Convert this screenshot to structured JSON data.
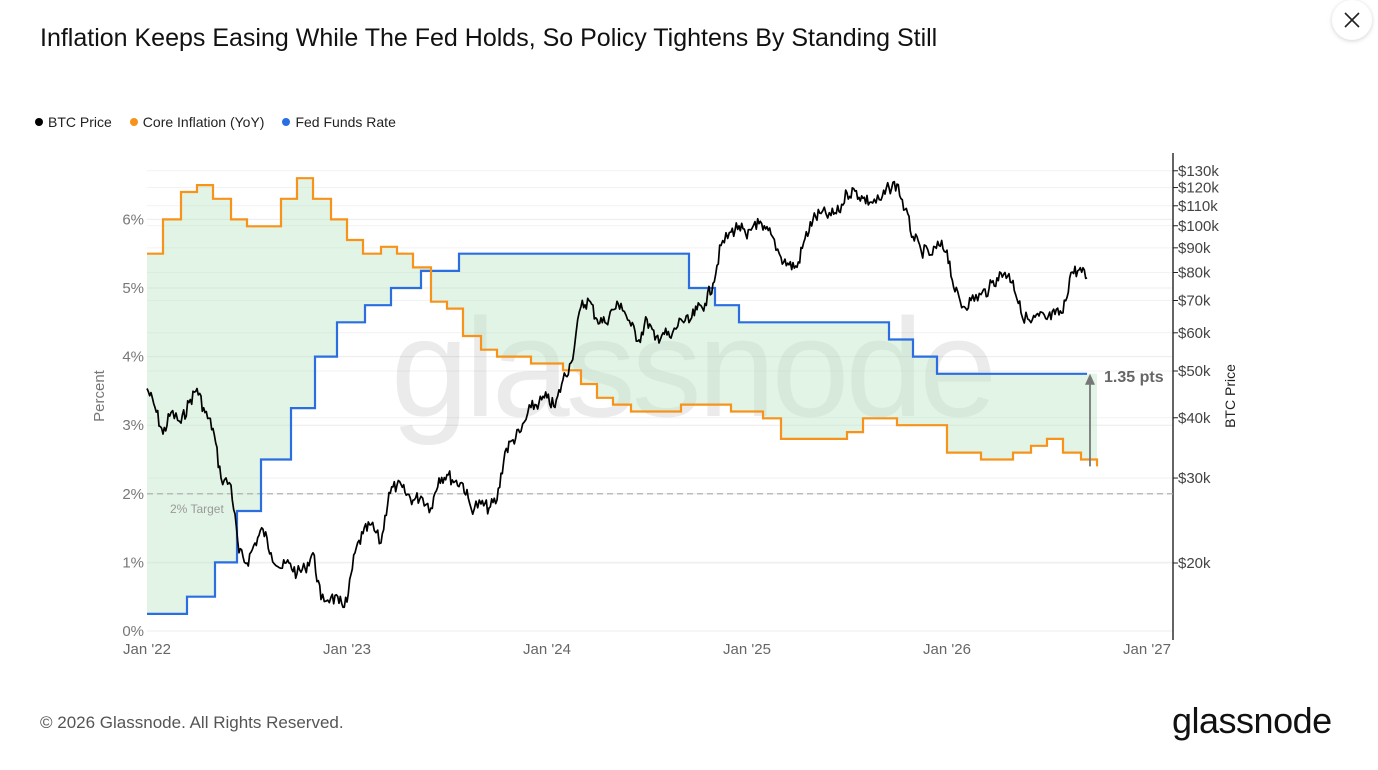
{
  "title": "Inflation Keeps Easing While The Fed Holds, So Policy Tightens By Standing Still",
  "legend": [
    {
      "label": "BTC Price",
      "color": "#000000"
    },
    {
      "label": "Core Inflation (YoY)",
      "color": "#f7931a"
    },
    {
      "label": "Fed Funds Rate",
      "color": "#2a6ee0"
    }
  ],
  "footer": "© 2026 Glassnode. All Rights Reserved.",
  "logo": "glassnode",
  "watermark": "glassnode",
  "close_icon": "close-icon",
  "chart_data": {
    "type": "line",
    "xlabel": "",
    "ylabel_left": "Percent",
    "ylabel_right": "BTC Price",
    "x_ticks": [
      "Jan '22",
      "Jan '23",
      "Jan '24",
      "Jan '25",
      "Jan '26",
      "Jan '27"
    ],
    "x_range": [
      2022.0,
      2027.13
    ],
    "y_left_ticks": [
      "0%",
      "1%",
      "2%",
      "3%",
      "4%",
      "5%",
      "6%"
    ],
    "y_left_range": [
      0,
      6.9
    ],
    "y_right_scale": "log",
    "y_right_ticks": [
      {
        "label": "$20k",
        "value": 20000
      },
      {
        "label": "$30k",
        "value": 30000
      },
      {
        "label": "$40k",
        "value": 40000
      },
      {
        "label": "$50k",
        "value": 50000
      },
      {
        "label": "$60k",
        "value": 60000
      },
      {
        "label": "$70k",
        "value": 70000
      },
      {
        "label": "$80k",
        "value": 80000
      },
      {
        "label": "$90k",
        "value": 90000
      },
      {
        "label": "$100k",
        "value": 100000
      },
      {
        "label": "$110k",
        "value": 110000
      },
      {
        "label": "$120k",
        "value": 120000
      },
      {
        "label": "$130k",
        "value": 130000
      }
    ],
    "annotations": {
      "target_label": "2% Target",
      "target_value": 2,
      "gap_label": "1.35 pts",
      "gap_from": 2.4,
      "gap_to": 3.75
    },
    "core_inflation": {
      "name": "Core Inflation (YoY)",
      "color": "#f7931a",
      "points": [
        [
          2022.0,
          5.5
        ],
        [
          2022.08,
          6.0
        ],
        [
          2022.17,
          6.4
        ],
        [
          2022.25,
          6.5
        ],
        [
          2022.33,
          6.3
        ],
        [
          2022.42,
          6.0
        ],
        [
          2022.5,
          5.9
        ],
        [
          2022.58,
          5.9
        ],
        [
          2022.67,
          6.3
        ],
        [
          2022.75,
          6.6
        ],
        [
          2022.83,
          6.3
        ],
        [
          2022.92,
          6.0
        ],
        [
          2023.0,
          5.7
        ],
        [
          2023.08,
          5.5
        ],
        [
          2023.17,
          5.6
        ],
        [
          2023.25,
          5.5
        ],
        [
          2023.33,
          5.3
        ],
        [
          2023.42,
          4.8
        ],
        [
          2023.5,
          4.7
        ],
        [
          2023.58,
          4.3
        ],
        [
          2023.67,
          4.1
        ],
        [
          2023.75,
          4.0
        ],
        [
          2023.83,
          4.0
        ],
        [
          2023.92,
          3.9
        ],
        [
          2024.0,
          3.9
        ],
        [
          2024.08,
          3.8
        ],
        [
          2024.17,
          3.6
        ],
        [
          2024.25,
          3.4
        ],
        [
          2024.33,
          3.3
        ],
        [
          2024.42,
          3.2
        ],
        [
          2024.5,
          3.2
        ],
        [
          2024.58,
          3.2
        ],
        [
          2024.67,
          3.3
        ],
        [
          2024.75,
          3.3
        ],
        [
          2024.83,
          3.3
        ],
        [
          2024.92,
          3.2
        ],
        [
          2025.0,
          3.2
        ],
        [
          2025.08,
          3.1
        ],
        [
          2025.17,
          2.8
        ],
        [
          2025.25,
          2.8
        ],
        [
          2025.33,
          2.8
        ],
        [
          2025.42,
          2.8
        ],
        [
          2025.5,
          2.9
        ],
        [
          2025.58,
          3.1
        ],
        [
          2025.67,
          3.1
        ],
        [
          2025.75,
          3.0
        ],
        [
          2025.83,
          3.0
        ],
        [
          2025.92,
          3.0
        ],
        [
          2026.0,
          2.6
        ],
        [
          2026.08,
          2.6
        ],
        [
          2026.17,
          2.5
        ],
        [
          2026.25,
          2.5
        ],
        [
          2026.33,
          2.6
        ],
        [
          2026.42,
          2.7
        ],
        [
          2026.5,
          2.8
        ],
        [
          2026.58,
          2.6
        ],
        [
          2026.67,
          2.5
        ],
        [
          2026.75,
          2.4
        ]
      ]
    },
    "fed_funds_rate": {
      "name": "Fed Funds Rate",
      "color": "#2a6ee0",
      "points": [
        [
          2022.0,
          0.25
        ],
        [
          2022.2,
          0.5
        ],
        [
          2022.34,
          1.0
        ],
        [
          2022.45,
          1.75
        ],
        [
          2022.57,
          2.5
        ],
        [
          2022.72,
          3.25
        ],
        [
          2022.84,
          4.0
        ],
        [
          2022.95,
          4.5
        ],
        [
          2023.09,
          4.75
        ],
        [
          2023.22,
          5.0
        ],
        [
          2023.37,
          5.25
        ],
        [
          2023.56,
          5.5
        ],
        [
          2024.71,
          5.0
        ],
        [
          2024.84,
          4.75
        ],
        [
          2024.96,
          4.5
        ],
        [
          2025.71,
          4.25
        ],
        [
          2025.83,
          4.0
        ],
        [
          2025.95,
          3.75
        ],
        [
          2026.7,
          3.75
        ]
      ]
    },
    "btc_price": {
      "name": "BTC Price",
      "color": "#000000",
      "points": [
        [
          2022.0,
          46000
        ],
        [
          2022.04,
          42000
        ],
        [
          2022.08,
          37000
        ],
        [
          2022.12,
          41000
        ],
        [
          2022.17,
          39000
        ],
        [
          2022.21,
          43000
        ],
        [
          2022.25,
          46000
        ],
        [
          2022.29,
          41000
        ],
        [
          2022.33,
          38000
        ],
        [
          2022.37,
          30000
        ],
        [
          2022.42,
          29000
        ],
        [
          2022.46,
          21000
        ],
        [
          2022.5,
          20000
        ],
        [
          2022.54,
          22000
        ],
        [
          2022.58,
          23500
        ],
        [
          2022.62,
          21000
        ],
        [
          2022.67,
          19500
        ],
        [
          2022.71,
          20000
        ],
        [
          2022.75,
          19000
        ],
        [
          2022.79,
          19500
        ],
        [
          2022.83,
          21000
        ],
        [
          2022.87,
          16800
        ],
        [
          2022.92,
          17000
        ],
        [
          2022.96,
          16500
        ],
        [
          2023.0,
          16600
        ],
        [
          2023.04,
          21000
        ],
        [
          2023.08,
          23000
        ],
        [
          2023.12,
          24000
        ],
        [
          2023.17,
          22000
        ],
        [
          2023.21,
          28000
        ],
        [
          2023.25,
          29000
        ],
        [
          2023.29,
          28000
        ],
        [
          2023.33,
          27000
        ],
        [
          2023.37,
          27500
        ],
        [
          2023.42,
          26000
        ],
        [
          2023.46,
          30000
        ],
        [
          2023.5,
          30500
        ],
        [
          2023.54,
          29500
        ],
        [
          2023.58,
          29200
        ],
        [
          2023.62,
          26000
        ],
        [
          2023.67,
          26500
        ],
        [
          2023.71,
          26000
        ],
        [
          2023.75,
          27000
        ],
        [
          2023.79,
          34000
        ],
        [
          2023.83,
          36000
        ],
        [
          2023.87,
          37500
        ],
        [
          2023.92,
          42000
        ],
        [
          2023.96,
          43000
        ],
        [
          2024.0,
          44000
        ],
        [
          2024.04,
          42000
        ],
        [
          2024.08,
          48000
        ],
        [
          2024.12,
          52000
        ],
        [
          2024.17,
          68000
        ],
        [
          2024.21,
          70000
        ],
        [
          2024.25,
          64000
        ],
        [
          2024.29,
          63000
        ],
        [
          2024.33,
          67000
        ],
        [
          2024.37,
          69000
        ],
        [
          2024.42,
          62000
        ],
        [
          2024.46,
          58000
        ],
        [
          2024.5,
          64000
        ],
        [
          2024.54,
          58000
        ],
        [
          2024.58,
          60000
        ],
        [
          2024.62,
          58500
        ],
        [
          2024.67,
          64000
        ],
        [
          2024.71,
          63000
        ],
        [
          2024.75,
          67000
        ],
        [
          2024.79,
          69000
        ],
        [
          2024.83,
          76000
        ],
        [
          2024.87,
          91000
        ],
        [
          2024.92,
          97000
        ],
        [
          2024.96,
          100000
        ],
        [
          2025.0,
          94000
        ],
        [
          2025.04,
          102000
        ],
        [
          2025.08,
          98000
        ],
        [
          2025.12,
          96000
        ],
        [
          2025.17,
          86000
        ],
        [
          2025.21,
          83000
        ],
        [
          2025.25,
          82000
        ],
        [
          2025.29,
          94000
        ],
        [
          2025.33,
          103000
        ],
        [
          2025.37,
          106000
        ],
        [
          2025.42,
          105000
        ],
        [
          2025.46,
          107000
        ],
        [
          2025.5,
          117000
        ],
        [
          2025.54,
          118000
        ],
        [
          2025.58,
          114000
        ],
        [
          2025.62,
          112000
        ],
        [
          2025.67,
          113000
        ],
        [
          2025.71,
          120000
        ],
        [
          2025.75,
          122000
        ],
        [
          2025.79,
          108000
        ],
        [
          2025.83,
          95000
        ],
        [
          2025.87,
          89000
        ],
        [
          2025.92,
          87000
        ],
        [
          2025.96,
          91000
        ],
        [
          2026.0,
          89000
        ],
        [
          2026.04,
          73000
        ],
        [
          2026.08,
          68000
        ],
        [
          2026.12,
          70000
        ],
        [
          2026.17,
          72000
        ],
        [
          2026.21,
          74000
        ],
        [
          2026.25,
          78000
        ],
        [
          2026.29,
          80000
        ],
        [
          2026.33,
          77000
        ],
        [
          2026.37,
          66000
        ],
        [
          2026.42,
          63000
        ],
        [
          2026.46,
          65000
        ],
        [
          2026.5,
          64000
        ],
        [
          2026.54,
          65500
        ],
        [
          2026.58,
          66000
        ],
        [
          2026.62,
          80000
        ],
        [
          2026.66,
          81000
        ],
        [
          2026.7,
          78000
        ]
      ]
    }
  }
}
